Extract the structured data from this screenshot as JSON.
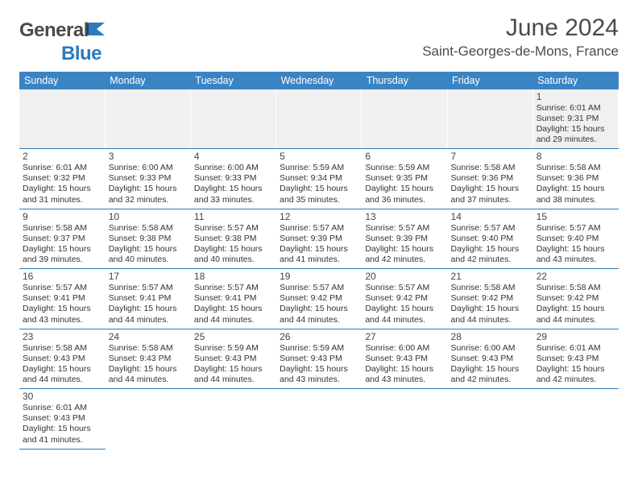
{
  "brand": {
    "part1": "General",
    "part2": "Blue"
  },
  "title": "June 2024",
  "location": "Saint-Georges-de-Mons, France",
  "colors": {
    "header_bg": "#3b84c4",
    "header_text": "#ffffff",
    "cell_border": "#2b7bbd",
    "firstweek_bg": "#f0f0f0",
    "text": "#333333",
    "logo_gray": "#4a4a4a",
    "logo_blue": "#2b7bbd"
  },
  "weekdays": [
    "Sunday",
    "Monday",
    "Tuesday",
    "Wednesday",
    "Thursday",
    "Friday",
    "Saturday"
  ],
  "weeks": [
    [
      null,
      null,
      null,
      null,
      null,
      null,
      {
        "n": "1",
        "sr": "6:01 AM",
        "ss": "9:31 PM",
        "dl": "15 hours and 29 minutes."
      }
    ],
    [
      {
        "n": "2",
        "sr": "6:01 AM",
        "ss": "9:32 PM",
        "dl": "15 hours and 31 minutes."
      },
      {
        "n": "3",
        "sr": "6:00 AM",
        "ss": "9:33 PM",
        "dl": "15 hours and 32 minutes."
      },
      {
        "n": "4",
        "sr": "6:00 AM",
        "ss": "9:33 PM",
        "dl": "15 hours and 33 minutes."
      },
      {
        "n": "5",
        "sr": "5:59 AM",
        "ss": "9:34 PM",
        "dl": "15 hours and 35 minutes."
      },
      {
        "n": "6",
        "sr": "5:59 AM",
        "ss": "9:35 PM",
        "dl": "15 hours and 36 minutes."
      },
      {
        "n": "7",
        "sr": "5:58 AM",
        "ss": "9:36 PM",
        "dl": "15 hours and 37 minutes."
      },
      {
        "n": "8",
        "sr": "5:58 AM",
        "ss": "9:36 PM",
        "dl": "15 hours and 38 minutes."
      }
    ],
    [
      {
        "n": "9",
        "sr": "5:58 AM",
        "ss": "9:37 PM",
        "dl": "15 hours and 39 minutes."
      },
      {
        "n": "10",
        "sr": "5:58 AM",
        "ss": "9:38 PM",
        "dl": "15 hours and 40 minutes."
      },
      {
        "n": "11",
        "sr": "5:57 AM",
        "ss": "9:38 PM",
        "dl": "15 hours and 40 minutes."
      },
      {
        "n": "12",
        "sr": "5:57 AM",
        "ss": "9:39 PM",
        "dl": "15 hours and 41 minutes."
      },
      {
        "n": "13",
        "sr": "5:57 AM",
        "ss": "9:39 PM",
        "dl": "15 hours and 42 minutes."
      },
      {
        "n": "14",
        "sr": "5:57 AM",
        "ss": "9:40 PM",
        "dl": "15 hours and 42 minutes."
      },
      {
        "n": "15",
        "sr": "5:57 AM",
        "ss": "9:40 PM",
        "dl": "15 hours and 43 minutes."
      }
    ],
    [
      {
        "n": "16",
        "sr": "5:57 AM",
        "ss": "9:41 PM",
        "dl": "15 hours and 43 minutes."
      },
      {
        "n": "17",
        "sr": "5:57 AM",
        "ss": "9:41 PM",
        "dl": "15 hours and 44 minutes."
      },
      {
        "n": "18",
        "sr": "5:57 AM",
        "ss": "9:41 PM",
        "dl": "15 hours and 44 minutes."
      },
      {
        "n": "19",
        "sr": "5:57 AM",
        "ss": "9:42 PM",
        "dl": "15 hours and 44 minutes."
      },
      {
        "n": "20",
        "sr": "5:57 AM",
        "ss": "9:42 PM",
        "dl": "15 hours and 44 minutes."
      },
      {
        "n": "21",
        "sr": "5:58 AM",
        "ss": "9:42 PM",
        "dl": "15 hours and 44 minutes."
      },
      {
        "n": "22",
        "sr": "5:58 AM",
        "ss": "9:42 PM",
        "dl": "15 hours and 44 minutes."
      }
    ],
    [
      {
        "n": "23",
        "sr": "5:58 AM",
        "ss": "9:43 PM",
        "dl": "15 hours and 44 minutes."
      },
      {
        "n": "24",
        "sr": "5:58 AM",
        "ss": "9:43 PM",
        "dl": "15 hours and 44 minutes."
      },
      {
        "n": "25",
        "sr": "5:59 AM",
        "ss": "9:43 PM",
        "dl": "15 hours and 44 minutes."
      },
      {
        "n": "26",
        "sr": "5:59 AM",
        "ss": "9:43 PM",
        "dl": "15 hours and 43 minutes."
      },
      {
        "n": "27",
        "sr": "6:00 AM",
        "ss": "9:43 PM",
        "dl": "15 hours and 43 minutes."
      },
      {
        "n": "28",
        "sr": "6:00 AM",
        "ss": "9:43 PM",
        "dl": "15 hours and 42 minutes."
      },
      {
        "n": "29",
        "sr": "6:01 AM",
        "ss": "9:43 PM",
        "dl": "15 hours and 42 minutes."
      }
    ],
    [
      {
        "n": "30",
        "sr": "6:01 AM",
        "ss": "9:43 PM",
        "dl": "15 hours and 41 minutes."
      },
      null,
      null,
      null,
      null,
      null,
      null
    ]
  ],
  "labels": {
    "sunrise": "Sunrise:",
    "sunset": "Sunset:",
    "daylight": "Daylight:"
  }
}
